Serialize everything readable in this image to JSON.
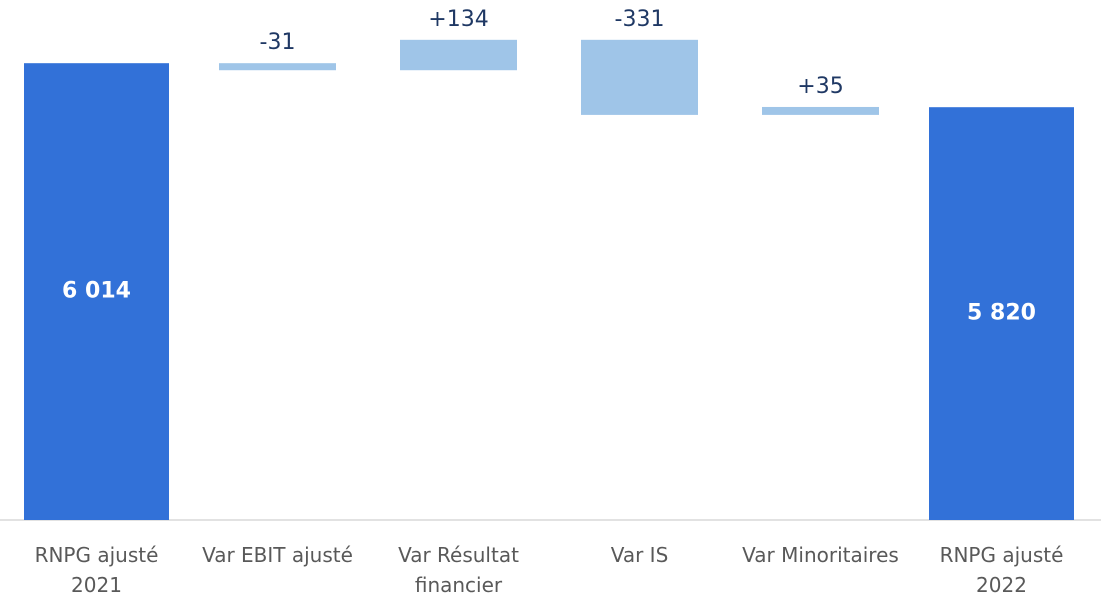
{
  "chart_data": {
    "type": "waterfall",
    "categories": [
      "RNPG ajusté 2021",
      "Var EBIT ajusté",
      "Var Résultat financier",
      "Var IS",
      "Var Minoritaires",
      "RNPG ajusté 2022"
    ],
    "values": [
      6014,
      -31,
      134,
      -331,
      35,
      5820
    ],
    "value_labels": [
      "6 014",
      "-31",
      "+134",
      "-331",
      "+35",
      "5 820"
    ],
    "measure": [
      "absolute",
      "relative",
      "relative",
      "relative",
      "relative",
      "absolute"
    ],
    "total_color": "#3271d8",
    "delta_color": "#9fc5e8",
    "ylim": [
      4000,
      6200
    ]
  }
}
